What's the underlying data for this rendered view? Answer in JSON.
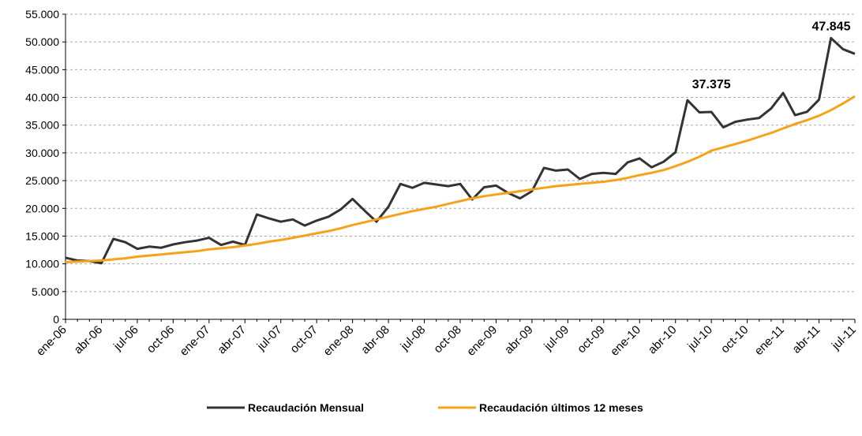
{
  "chart_data": {
    "type": "line",
    "categories": [
      "ene-06",
      null,
      null,
      "abr-06",
      null,
      null,
      "jul-06",
      null,
      null,
      "oct-06",
      null,
      null,
      "ene-07",
      null,
      null,
      "abr-07",
      null,
      null,
      "jul-07",
      null,
      null,
      "oct-07",
      null,
      null,
      "ene-08",
      null,
      null,
      "abr-08",
      null,
      null,
      "jul-08",
      null,
      null,
      "oct-08",
      null,
      null,
      "ene-09",
      null,
      null,
      "abr-09",
      null,
      null,
      "jul-09",
      null,
      null,
      "oct-09",
      null,
      null,
      "ene-10",
      null,
      null,
      "abr-10",
      null,
      null,
      "jul-10",
      null,
      null,
      "oct-10",
      null,
      null,
      "ene-11",
      null,
      null,
      "abr-11",
      null,
      null,
      "jul-11"
    ],
    "series": [
      {
        "name": "Recaudación Mensual",
        "color": "#333333",
        "values": [
          11100,
          10600,
          10500,
          10100,
          14500,
          13900,
          12700,
          13100,
          12900,
          13500,
          13900,
          14200,
          14700,
          13400,
          14000,
          13400,
          18900,
          18200,
          17600,
          18000,
          16900,
          17800,
          18500,
          19800,
          21700,
          19600,
          17600,
          20300,
          24400,
          23700,
          24600,
          24300,
          24000,
          24400,
          21600,
          23800,
          24100,
          22800,
          21800,
          23100,
          27300,
          26800,
          27000,
          25300,
          26200,
          26400,
          26200,
          28300,
          29000,
          27400,
          28400,
          30100,
          39500,
          37300,
          37375,
          34600,
          35600,
          36000,
          36300,
          38000,
          40800,
          36800,
          37400,
          39600,
          50700,
          48700,
          47845
        ],
        "value_labels": [
          null,
          null,
          null,
          null,
          null,
          null,
          null,
          null,
          null,
          null,
          null,
          null,
          null,
          null,
          null,
          null,
          null,
          null,
          null,
          null,
          null,
          null,
          null,
          null,
          null,
          null,
          null,
          null,
          null,
          null,
          null,
          null,
          null,
          null,
          null,
          null,
          null,
          null,
          null,
          null,
          null,
          null,
          null,
          null,
          null,
          null,
          null,
          null,
          null,
          null,
          null,
          null,
          null,
          null,
          "37.375",
          null,
          null,
          null,
          null,
          null,
          null,
          null,
          null,
          null,
          null,
          null,
          "47.845"
        ]
      },
      {
        "name": "Recaudación últimos 12 meses",
        "color": "#f5a31a",
        "values": [
          10300,
          10400,
          10500,
          10600,
          10800,
          11000,
          11300,
          11500,
          11700,
          11900,
          12100,
          12300,
          12600,
          12800,
          13000,
          13300,
          13600,
          14000,
          14300,
          14700,
          15100,
          15500,
          15900,
          16400,
          17000,
          17500,
          18000,
          18500,
          19000,
          19500,
          19900,
          20300,
          20800,
          21300,
          21800,
          22200,
          22500,
          22800,
          23100,
          23400,
          23700,
          24000,
          24200,
          24400,
          24600,
          24800,
          25100,
          25500,
          26000,
          26400,
          26900,
          27600,
          28400,
          29300,
          30400,
          31000,
          31600,
          32200,
          32900,
          33600,
          34400,
          35200,
          35900,
          36700,
          37700,
          38900,
          40200
        ]
      }
    ],
    "ylim": [
      0,
      55000
    ],
    "yticks": [
      0,
      {
        "value": 5000,
        "label": "5.000"
      },
      {
        "value": 10000,
        "label": "10.000"
      },
      {
        "value": 15000,
        "label": "15.000"
      },
      {
        "value": 20000,
        "label": "20.000"
      },
      {
        "value": 25000,
        "label": "25.000"
      },
      {
        "value": 30000,
        "label": "30.000"
      },
      {
        "value": 35000,
        "label": "35.000"
      },
      {
        "value": 40000,
        "label": "40.000"
      },
      {
        "value": 45000,
        "label": "45.000"
      },
      {
        "value": 50000,
        "label": "50.000"
      },
      {
        "value": 55000,
        "label": "55.000"
      }
    ],
    "grid": true,
    "legend": "bottom"
  }
}
